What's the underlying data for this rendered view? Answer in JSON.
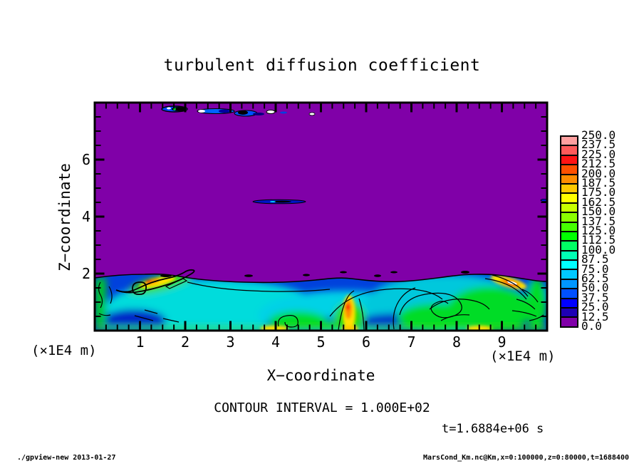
{
  "header": {
    "title": "turbulent diffusion coefficient"
  },
  "plot": {
    "x_axis": {
      "label": "X−coordinate",
      "unit": "(×1E4 m)",
      "range": [
        0,
        10
      ],
      "major_ticks": [
        1,
        2,
        3,
        4,
        5,
        6,
        7,
        8,
        9
      ],
      "minor_step": 0.25
    },
    "z_axis": {
      "label": "Z−coordinate",
      "unit": "(×1E4 m)",
      "range": [
        0,
        8
      ],
      "major_ticks": [
        2,
        4,
        6
      ],
      "minor_step": 0.5
    }
  },
  "colorbar": {
    "labels_top_to_bottom": [
      "250.0",
      "237.5",
      "225.0",
      "212.5",
      "200.0",
      "187.5",
      "175.0",
      "162.5",
      "150.0",
      "137.5",
      "125.0",
      "112.5",
      "100.0",
      "87.5",
      "75.0",
      "62.5",
      "50.0",
      "37.5",
      "25.0",
      "12.5",
      "0.0"
    ],
    "colors_top_to_bottom": [
      "#ffa0a0",
      "#ff5a5a",
      "#ff1414",
      "#ff5000",
      "#ff8c00",
      "#ffc800",
      "#ffff00",
      "#c8ff00",
      "#8cff00",
      "#46ff00",
      "#00ff00",
      "#00ff64",
      "#00ffb4",
      "#00ffff",
      "#00c8ff",
      "#0096ff",
      "#0050ff",
      "#0000ff",
      "#1e00b4",
      "#8000a8"
    ]
  },
  "annotations": {
    "contour_interval": "CONTOUR INTERVAL = 1.000E+02",
    "time": "t=1.6884e+06 s"
  },
  "footer": {
    "left": "./gpview-new  2013-01-27",
    "right": "MarsCond_Km.nc@Km,x=0:100000,z=0:80000,t=1688400"
  },
  "chart_data": {
    "type": "heatmap",
    "title": "turbulent diffusion coefficient",
    "xlabel": "X−coordinate (×1E4 m)",
    "ylabel": "Z−coordinate (×1E4 m)",
    "xlim": [
      0,
      10
    ],
    "ylim": [
      0,
      8
    ],
    "x_major_ticks": [
      1,
      2,
      3,
      4,
      5,
      6,
      7,
      8,
      9
    ],
    "z_major_ticks": [
      2,
      4,
      6
    ],
    "value_min": 0.0,
    "value_max": 250.0,
    "level_step": 12.5,
    "levels": [
      0.0,
      12.5,
      25.0,
      37.5,
      50.0,
      62.5,
      75.0,
      87.5,
      100.0,
      112.5,
      125.0,
      137.5,
      150.0,
      162.5,
      175.0,
      187.5,
      200.0,
      212.5,
      225.0,
      237.5,
      250.0
    ],
    "contour_interval": "1.000E+02",
    "time": "t=1.6884e+06 s",
    "grid": false,
    "legend_position": "right colorbar",
    "field_description": "Near-zero (purple) values fill the domain above z≈2×1E4 m. A turbulent boundary layer occupies z<2×1E4 m with mostly 25–100 (blue/cyan) values, green eddies (~100–150), yellow-orange plume cores (~175–225) near x≈1.2, x≈5.5 and x≈9.2, and a small red/white maximum (~250) near x≈9.2, z≈1.5. Thin dark cloud-like streaks with blue/white specks hug the top boundary near x≈1.5–4.9 at z≈7.8, and a thin dark filament sits near x≈3.5–4.7 at z≈4.5."
  }
}
